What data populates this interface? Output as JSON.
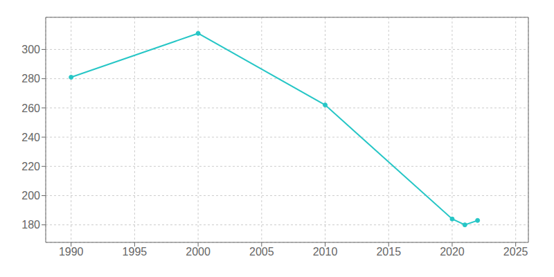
{
  "chart_data": {
    "type": "line",
    "x": [
      1990,
      2000,
      2010,
      2020,
      2021,
      2022
    ],
    "values": [
      281,
      311,
      262,
      184,
      180,
      183
    ],
    "color": "#26C6C6",
    "marker": "o",
    "xlim": [
      1988,
      2026
    ],
    "ylim": [
      168,
      322
    ],
    "xticks": [
      1990,
      1995,
      2000,
      2005,
      2010,
      2015,
      2020,
      2025
    ],
    "yticks": [
      180,
      200,
      220,
      240,
      260,
      280,
      300
    ],
    "grid": true
  }
}
